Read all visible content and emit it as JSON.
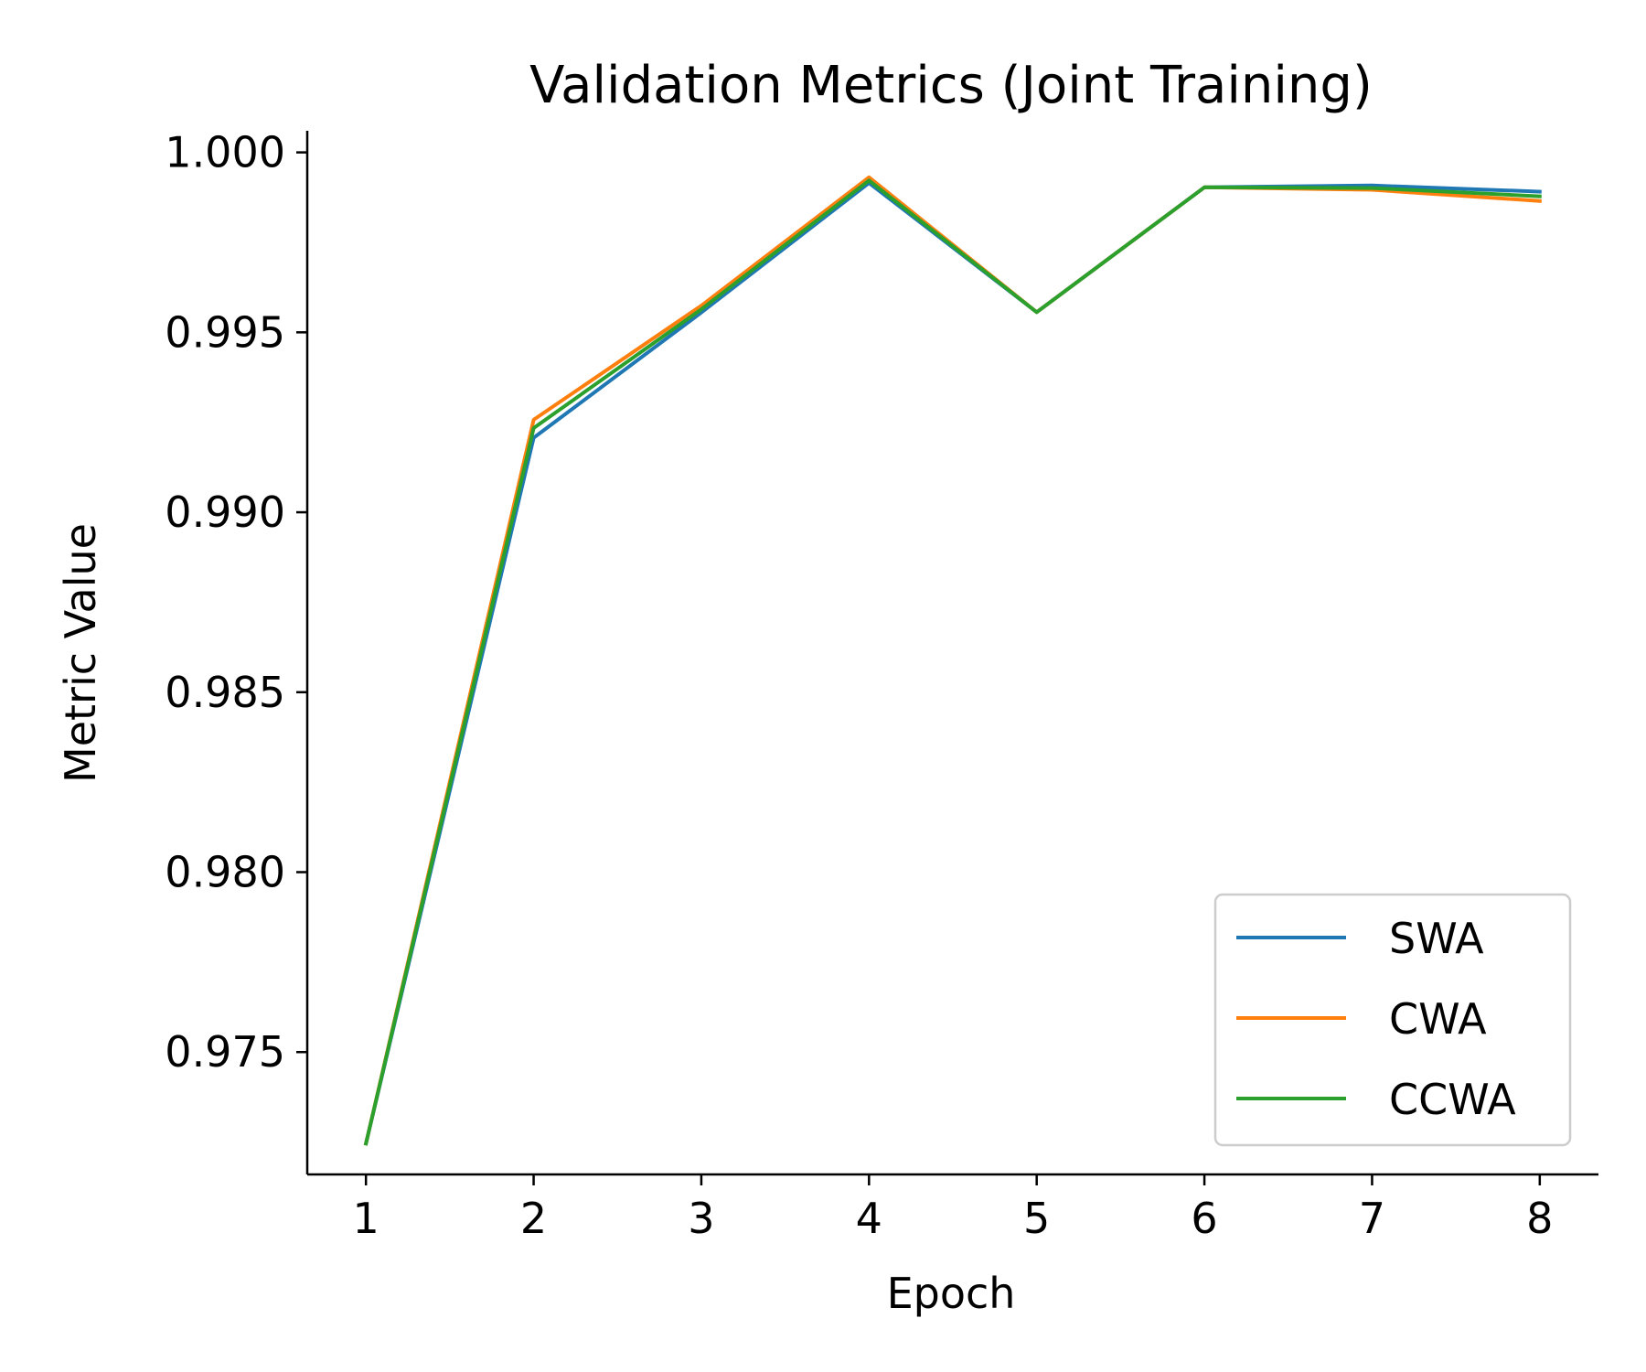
{
  "chart_data": {
    "type": "line",
    "title": "Validation Metrics (Joint Training)",
    "xlabel": "Epoch",
    "ylabel": "Metric Value",
    "x": [
      1,
      2,
      3,
      4,
      5,
      6,
      7,
      8
    ],
    "xticks": [
      "1",
      "2",
      "3",
      "4",
      "5",
      "6",
      "7",
      "8"
    ],
    "yticks": [
      "0.975",
      "0.980",
      "0.985",
      "0.990",
      "0.995",
      "1.000"
    ],
    "ytick_values": [
      0.975,
      0.98,
      0.985,
      0.99,
      0.995,
      1.0
    ],
    "xlim": [
      0.65,
      8.35
    ],
    "ylim": [
      0.9716,
      1.0006
    ],
    "grid": false,
    "legend_position": "lower right",
    "series": [
      {
        "name": "SWA",
        "color": "#1f77b4",
        "values": [
          0.97246,
          0.99207,
          0.99555,
          0.99915,
          0.99556,
          0.99903,
          0.99908,
          0.99891
        ]
      },
      {
        "name": "CWA",
        "color": "#ff7f0e",
        "values": [
          0.97246,
          0.99257,
          0.99574,
          0.99931,
          0.99556,
          0.99903,
          0.99896,
          0.99865
        ]
      },
      {
        "name": "CCWA",
        "color": "#2ca02c",
        "values": [
          0.97246,
          0.99234,
          0.99564,
          0.99922,
          0.99556,
          0.99903,
          0.99901,
          0.99878
        ]
      }
    ]
  }
}
